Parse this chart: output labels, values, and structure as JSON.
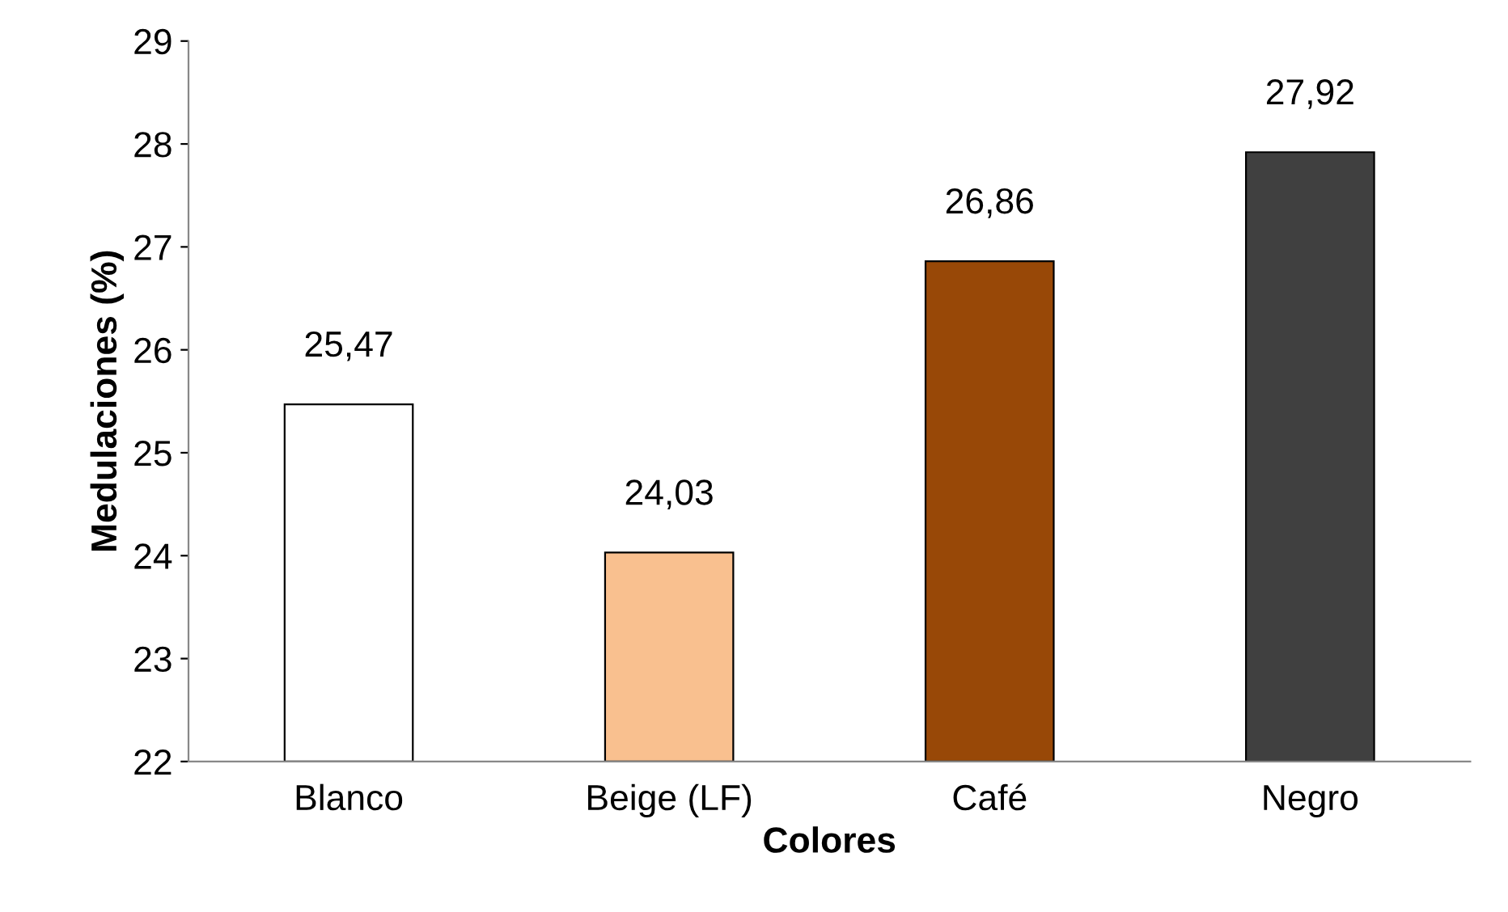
{
  "chart_data": {
    "type": "bar",
    "xlabel": "Colores",
    "ylabel": "Medulaciones (%)",
    "categories": [
      "Blanco",
      "Beige (LF)",
      "Café",
      "Negro"
    ],
    "values": [
      25.47,
      24.03,
      26.86,
      27.92
    ],
    "colors": [
      "#ffffff",
      "#f9c08f",
      "#984807",
      "#404040"
    ],
    "value_labels": [
      "25,47",
      "24,03",
      "26,86",
      "27,92"
    ],
    "ylim": [
      22,
      29
    ],
    "yticks": [
      22,
      23,
      24,
      25,
      26,
      27,
      28,
      29
    ],
    "grid": false,
    "legend": false
  }
}
